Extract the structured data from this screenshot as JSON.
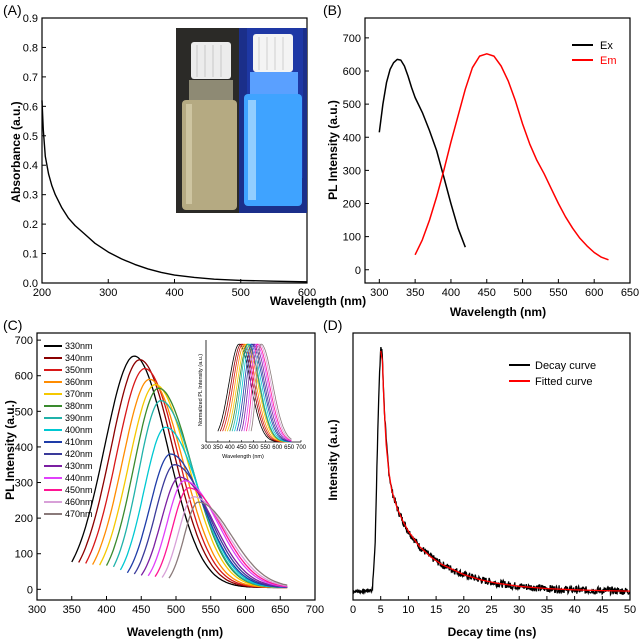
{
  "panels": [
    {
      "id": "A",
      "label": "(A)",
      "type": "line",
      "xlabel": "Wavelength (nm)",
      "ylabel": "Absorbance (a.u.)",
      "xlim": [
        200,
        600
      ],
      "ylim": [
        0,
        0.9
      ],
      "xticks": [
        200,
        300,
        400,
        500,
        600
      ],
      "yticks": [
        0.0,
        0.1,
        0.2,
        0.3,
        0.4,
        0.5,
        0.6,
        0.7,
        0.8,
        0.9
      ],
      "series": [
        {
          "color": "#000000",
          "x": [
            200,
            202,
            205,
            210,
            215,
            220,
            230,
            240,
            250,
            260,
            270,
            280,
            300,
            320,
            340,
            360,
            380,
            400,
            430,
            460,
            500,
            550,
            600
          ],
          "y": [
            0.62,
            0.52,
            0.43,
            0.37,
            0.33,
            0.3,
            0.255,
            0.22,
            0.195,
            0.175,
            0.155,
            0.135,
            0.105,
            0.082,
            0.063,
            0.048,
            0.036,
            0.027,
            0.019,
            0.013,
            0.009,
            0.006,
            0.004
          ]
        }
      ],
      "inset_photo": {
        "left_vial_color": "#b5aa82",
        "right_vial_color": "#3fa3ff",
        "right_background": "#1b2f8a",
        "left_background": "#2c2c28"
      }
    },
    {
      "id": "B",
      "label": "(B)",
      "type": "line",
      "xlabel": "Wavelength (nm)",
      "ylabel": "PL Intensity (a.u.)",
      "xlim": [
        280,
        650
      ],
      "ylim": [
        -40,
        760
      ],
      "xticks": [
        300,
        350,
        400,
        450,
        500,
        550,
        600,
        650
      ],
      "yticks": [
        0,
        100,
        200,
        300,
        400,
        500,
        600,
        700
      ],
      "legend": "top-right",
      "series": [
        {
          "name": "Ex",
          "color": "#000000",
          "x": [
            300,
            305,
            310,
            315,
            320,
            325,
            330,
            335,
            340,
            345,
            350,
            360,
            370,
            380,
            390,
            400,
            410,
            420
          ],
          "y": [
            415,
            500,
            565,
            605,
            625,
            635,
            633,
            615,
            585,
            550,
            520,
            475,
            420,
            360,
            280,
            200,
            125,
            68
          ]
        },
        {
          "name": "Em",
          "color": "#ff0000",
          "x": [
            350,
            360,
            370,
            380,
            390,
            400,
            410,
            420,
            430,
            440,
            450,
            460,
            470,
            480,
            490,
            500,
            510,
            520,
            530,
            540,
            550,
            560,
            570,
            580,
            590,
            600,
            610,
            620
          ],
          "y": [
            45,
            90,
            150,
            220,
            300,
            385,
            465,
            545,
            610,
            645,
            652,
            645,
            615,
            570,
            510,
            440,
            380,
            330,
            290,
            245,
            200,
            160,
            125,
            95,
            72,
            52,
            38,
            30
          ]
        }
      ]
    },
    {
      "id": "C",
      "label": "(C)",
      "type": "line",
      "xlabel": "Wavelength (nm)",
      "ylabel": "PL Intensity (a.u.)",
      "xlim": [
        300,
        700
      ],
      "ylim": [
        -30,
        720
      ],
      "xticks": [
        300,
        350,
        400,
        450,
        500,
        550,
        600,
        650,
        700
      ],
      "yticks": [
        0,
        100,
        200,
        300,
        400,
        500,
        600,
        700
      ],
      "legend": "top-left",
      "series": [
        {
          "name": "330nm",
          "color": "#000000",
          "start": 350,
          "peak": 440,
          "amp": 650
        },
        {
          "name": "340nm",
          "color": "#8b0000",
          "start": 360,
          "peak": 448,
          "amp": 640
        },
        {
          "name": "350nm",
          "color": "#d81818",
          "start": 370,
          "peak": 455,
          "amp": 615
        },
        {
          "name": "360nm",
          "color": "#ff8c00",
          "start": 380,
          "peak": 462,
          "amp": 585
        },
        {
          "name": "370nm",
          "color": "#f5c800",
          "start": 390,
          "peak": 470,
          "amp": 570
        },
        {
          "name": "380nm",
          "color": "#3a8a2e",
          "start": 400,
          "peak": 475,
          "amp": 560
        },
        {
          "name": "390nm",
          "color": "#20b2aa",
          "start": 410,
          "peak": 478,
          "amp": 525
        },
        {
          "name": "400nm",
          "color": "#00c8d2",
          "start": 420,
          "peak": 485,
          "amp": 450
        },
        {
          "name": "410nm",
          "color": "#1e3ca8",
          "start": 430,
          "peak": 492,
          "amp": 375
        },
        {
          "name": "420nm",
          "color": "#3a3a9a",
          "start": 440,
          "peak": 498,
          "amp": 345
        },
        {
          "name": "430nm",
          "color": "#7b1fa2",
          "start": 450,
          "peak": 505,
          "amp": 310
        },
        {
          "name": "440nm",
          "color": "#e040fb",
          "start": 460,
          "peak": 512,
          "amp": 300
        },
        {
          "name": "450nm",
          "color": "#ff1493",
          "start": 470,
          "peak": 518,
          "amp": 280
        },
        {
          "name": "460nm",
          "color": "#d8a0d8",
          "start": 480,
          "peak": 525,
          "amp": 255
        },
        {
          "name": "470nm",
          "color": "#8a7a7a",
          "start": 490,
          "peak": 532,
          "amp": 240
        }
      ],
      "end_wavelength": 660,
      "inset": {
        "xlabel": "Wavelength (nm)",
        "ylabel": "Normalized PL Intensity (a.u.)",
        "xlim": [
          300,
          700
        ],
        "xticks": [
          300,
          350,
          400,
          450,
          500,
          550,
          600,
          650,
          700
        ]
      }
    },
    {
      "id": "D",
      "label": "(D)",
      "type": "line",
      "xlabel": "Decay time (ns)",
      "ylabel": "Intensity (a.u.)",
      "xlim": [
        0,
        50
      ],
      "ylim": [
        0,
        1.05
      ],
      "xticks": [
        0,
        5,
        10,
        15,
        20,
        25,
        30,
        35,
        40,
        45,
        50
      ],
      "legend": "top-right",
      "series": [
        {
          "name": "Decay curve",
          "color": "#000000",
          "x": [
            0,
            2,
            3.5,
            4.0,
            4.5,
            5.0,
            5.3,
            5.6,
            6.0,
            6.5,
            7,
            8,
            9,
            10,
            12,
            14,
            16,
            18,
            20,
            23,
            26,
            30,
            35,
            40,
            45,
            50
          ],
          "y": [
            0.035,
            0.035,
            0.04,
            0.22,
            0.7,
            1.0,
            0.96,
            0.78,
            0.62,
            0.5,
            0.43,
            0.36,
            0.31,
            0.27,
            0.21,
            0.17,
            0.14,
            0.12,
            0.1,
            0.08,
            0.066,
            0.054,
            0.045,
            0.04,
            0.037,
            0.035
          ]
        },
        {
          "name": "Fitted curve",
          "color": "#ff0000",
          "x": [
            5.0,
            5.3,
            5.6,
            6.0,
            6.5,
            7,
            8,
            9,
            10,
            12,
            14,
            16,
            18,
            20,
            23,
            26,
            30,
            35,
            40,
            45,
            50
          ],
          "y": [
            0.98,
            0.94,
            0.77,
            0.61,
            0.5,
            0.43,
            0.36,
            0.31,
            0.27,
            0.21,
            0.17,
            0.14,
            0.12,
            0.1,
            0.08,
            0.066,
            0.054,
            0.045,
            0.04,
            0.037,
            0.035
          ]
        }
      ]
    }
  ]
}
